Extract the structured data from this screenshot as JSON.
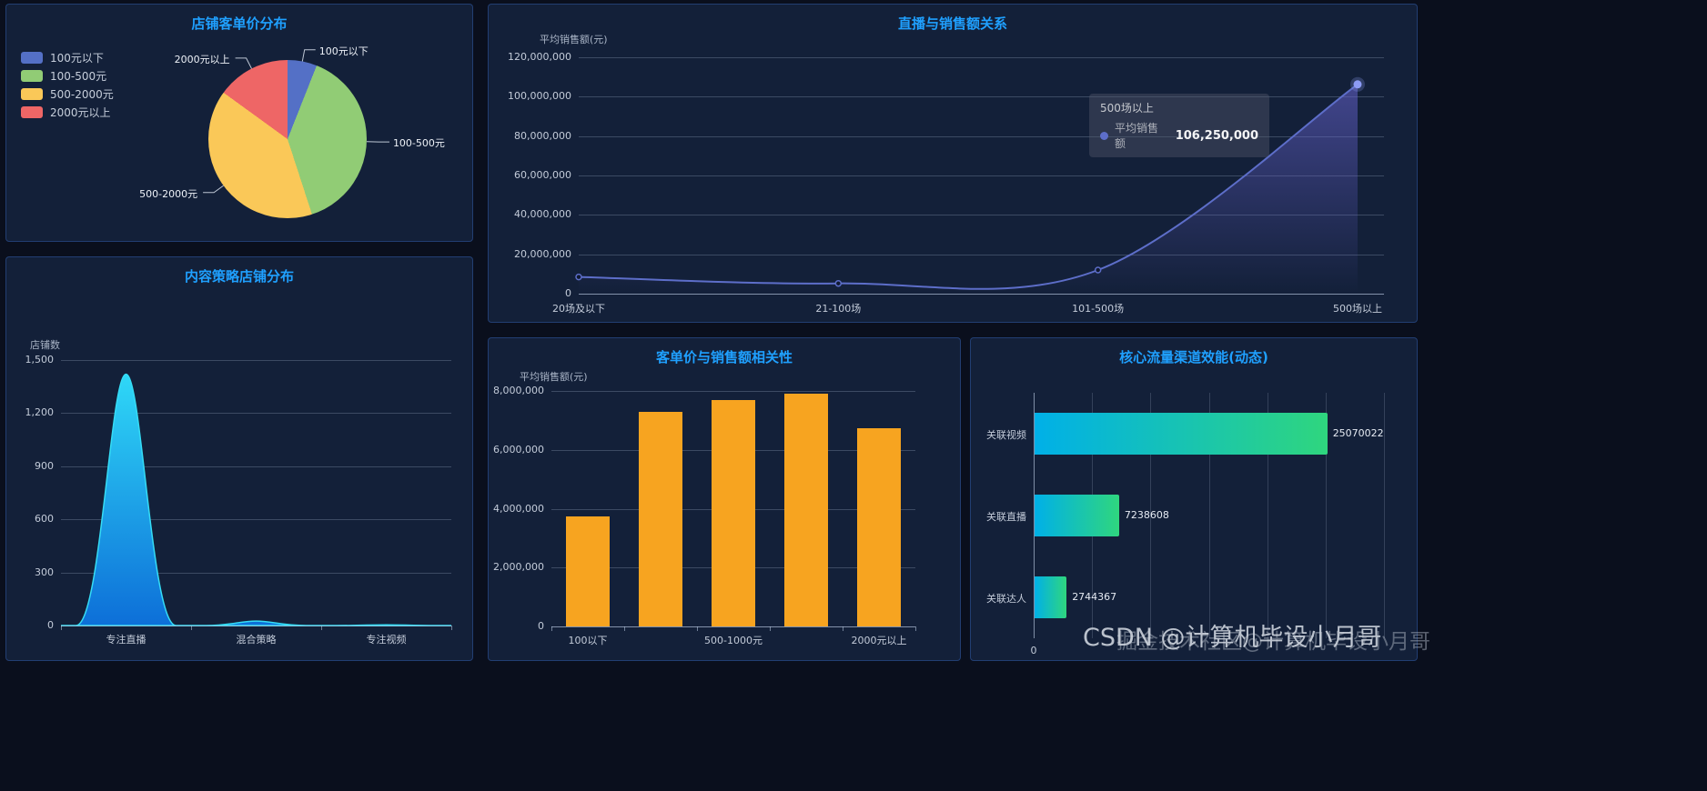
{
  "watermarks": {
    "csdn": "CSDN @计算机毕设小月哥",
    "juejin": "掘金技术社区@计算机毕设小月哥"
  },
  "chart_data": [
    {
      "id": "pie",
      "type": "pie",
      "title": "店铺客单价分布",
      "legend_position": "left",
      "slices": [
        {
          "label": "100元以下",
          "value": 6,
          "color": "#5470c6"
        },
        {
          "label": "100-500元",
          "value": 39,
          "color": "#91cc75"
        },
        {
          "label": "500-2000元",
          "value": 40,
          "color": "#fac858"
        },
        {
          "label": "2000元以上",
          "value": 15,
          "color": "#ee6666"
        }
      ]
    },
    {
      "id": "strategy",
      "type": "area",
      "title": "内容策略店铺分布",
      "ylabel": "店铺数",
      "categories": [
        "专注直播",
        "混合策略",
        "专注视频"
      ],
      "values": [
        1420,
        25,
        4
      ],
      "ylim": [
        0,
        1500
      ],
      "yticks": [
        "0",
        "300",
        "600",
        "900",
        "1,200",
        "1,500"
      ],
      "gradient": [
        "#2fd8f7",
        "#0d6fd8"
      ]
    },
    {
      "id": "live",
      "type": "line",
      "title": "直播与销售额关系",
      "ylabel": "平均销售额(元)",
      "categories": [
        "20场及以下",
        "21-100场",
        "101-500场",
        "500场以上"
      ],
      "values": [
        8500000,
        5200000,
        12000000,
        106250000
      ],
      "ylim": [
        0,
        120000000
      ],
      "yticks": [
        "0",
        "20,000,000",
        "40,000,000",
        "60,000,000",
        "80,000,000",
        "100,000,000",
        "120,000,000"
      ],
      "line_color": "#5d6ec9",
      "tooltip": {
        "title": "500场以上",
        "series": "平均销售额",
        "value": "106,250,000"
      }
    },
    {
      "id": "price",
      "type": "bar",
      "title": "客单价与销售额相关性",
      "ylabel": "平均销售额(元)",
      "categories": [
        "100以下",
        "",
        "500-1000元",
        "",
        "2000元以上"
      ],
      "values": [
        3750000,
        7300000,
        7700000,
        7900000,
        6750000
      ],
      "ylim": [
        0,
        8000000
      ],
      "yticks": [
        "0",
        "2,000,000",
        "4,000,000",
        "6,000,000",
        "8,000,000"
      ],
      "bar_color": "#f7a420"
    },
    {
      "id": "channel",
      "type": "hbar",
      "title": "核心流量渠道效能(动态)",
      "categories": [
        "关联视频",
        "关联直播",
        "关联达人"
      ],
      "values": [
        25070022,
        7238608,
        2744367
      ],
      "xlim": [
        0,
        30000000
      ],
      "xticks_shown": [
        "0"
      ],
      "bar_gradient": [
        "#00b0e8",
        "#2fd67e"
      ]
    }
  ]
}
